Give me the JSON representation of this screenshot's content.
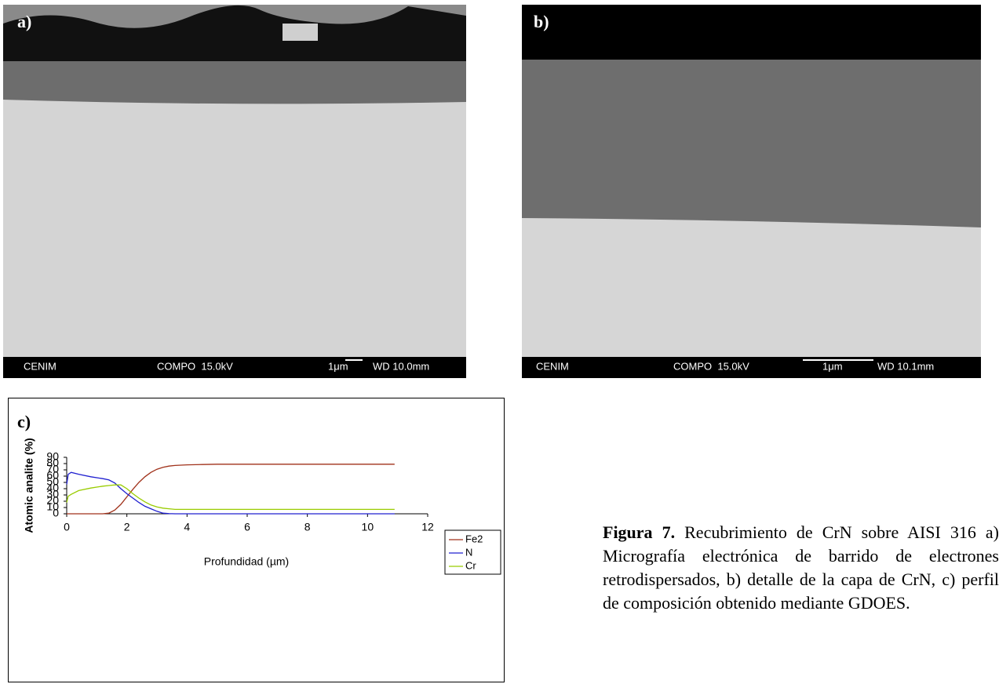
{
  "panels": [
    {
      "label": "a)",
      "footer": {
        "lab": "CENIM",
        "mode": "COMPO  15.0kV",
        "scale": "1μm",
        "wd": "WD 10.0mm"
      }
    },
    {
      "label": "b)",
      "footer": {
        "lab": "CENIM",
        "mode": "COMPO  15.0kV",
        "scale": "1μm",
        "wd": "WD 10.1mm"
      }
    }
  ],
  "chart_data": {
    "type": "line",
    "label": "c)",
    "x_label": "Profundidad (µm)",
    "y_label": "Atomic analite (%)",
    "x": [
      0,
      0.05,
      0.15,
      0.4,
      0.8,
      1.2,
      1.4,
      1.6,
      1.8,
      2.0,
      2.2,
      2.4,
      2.6,
      2.8,
      3.0,
      3.2,
      3.4,
      3.6,
      4.0,
      4.5,
      5,
      6,
      7,
      8,
      9,
      10,
      10.9
    ],
    "series": [
      {
        "name": "Fe2",
        "color": "#a0311a",
        "values": [
          0,
          0,
          0,
          0,
          0,
          0,
          1,
          6,
          15,
          27,
          39,
          50,
          59,
          66,
          71,
          74,
          76,
          77,
          78,
          78.5,
          79,
          79,
          79,
          79,
          79,
          79,
          79
        ]
      },
      {
        "name": "N",
        "color": "#2020d0",
        "values": [
          47,
          63,
          66,
          63,
          59,
          56,
          54,
          49,
          40,
          32,
          25,
          18,
          12,
          8,
          4,
          1,
          0.3,
          0,
          0,
          0,
          0,
          0,
          0,
          0,
          0,
          0,
          0
        ]
      },
      {
        "name": "Cr",
        "color": "#99cc00",
        "values": [
          18,
          28,
          31,
          37,
          41,
          44,
          45,
          46,
          46,
          40,
          32,
          25,
          19,
          14,
          11,
          9,
          8,
          7,
          7,
          7,
          7,
          7,
          7,
          7,
          7,
          7,
          7
        ]
      }
    ],
    "xlim": [
      0,
      12
    ],
    "xticks": [
      0,
      2,
      4,
      6,
      8,
      10,
      12
    ],
    "ylim": [
      0,
      90
    ],
    "yticks": [
      0,
      10,
      20,
      30,
      40,
      50,
      60,
      70,
      80,
      90
    ],
    "legend": "right"
  },
  "caption": {
    "title": "Figura 7.",
    "text": "Recubrimiento de CrN sobre AISI 316 a) Micrografía electrónica de barrido de electrones retrodispersados, b) detalle de la capa de CrN, c) perfil de composición obtenido mediante GDOES."
  }
}
